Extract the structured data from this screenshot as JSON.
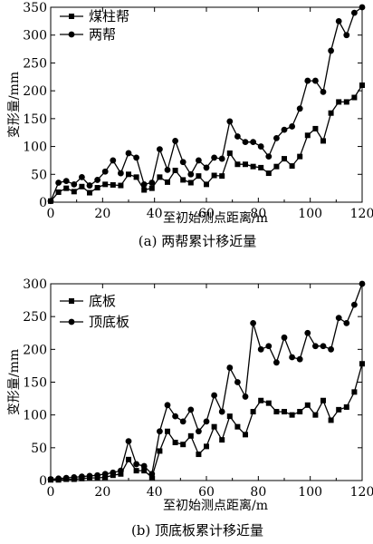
{
  "chart_data": [
    {
      "type": "line",
      "caption": "(a)  两帮累计移近量",
      "xlabel": "至初始测点距离/m",
      "ylabel": "变形量/mm",
      "xlim": [
        0,
        120
      ],
      "ylim": [
        0,
        350
      ],
      "xticks": [
        0,
        20,
        40,
        60,
        80,
        100,
        120
      ],
      "yticks": [
        0,
        50,
        100,
        150,
        200,
        250,
        300,
        350
      ],
      "legend_position": "top-left",
      "series": [
        {
          "name": "煤柱帮",
          "marker": "square",
          "x": [
            0,
            3,
            6,
            9,
            12,
            15,
            18,
            21,
            24,
            27,
            30,
            33,
            36,
            39,
            42,
            45,
            48,
            51,
            54,
            57,
            60,
            63,
            66,
            69,
            72,
            75,
            78,
            81,
            84,
            87,
            90,
            93,
            96,
            99,
            102,
            105,
            108,
            111,
            114,
            117,
            120
          ],
          "y": [
            2,
            18,
            25,
            19,
            28,
            17,
            26,
            32,
            31,
            30,
            50,
            45,
            22,
            25,
            45,
            36,
            57,
            40,
            35,
            47,
            32,
            48,
            47,
            88,
            68,
            68,
            64,
            62,
            52,
            64,
            78,
            65,
            82,
            120,
            132,
            110,
            160,
            180,
            180,
            188,
            210
          ]
        },
        {
          "name": "两帮",
          "marker": "circle",
          "x": [
            0,
            3,
            6,
            9,
            12,
            15,
            18,
            21,
            24,
            27,
            30,
            33,
            36,
            39,
            42,
            45,
            48,
            51,
            54,
            57,
            60,
            63,
            66,
            69,
            72,
            75,
            78,
            81,
            84,
            87,
            90,
            93,
            96,
            99,
            102,
            105,
            108,
            111,
            114,
            117,
            120
          ],
          "y": [
            2,
            35,
            38,
            32,
            45,
            30,
            40,
            55,
            75,
            52,
            88,
            80,
            32,
            35,
            95,
            58,
            110,
            72,
            50,
            75,
            62,
            80,
            78,
            145,
            118,
            108,
            108,
            100,
            82,
            115,
            130,
            136,
            168,
            218,
            218,
            198,
            272,
            325,
            300,
            340,
            350
          ]
        }
      ]
    },
    {
      "type": "line",
      "caption": "(b)  顶底板累计移近量",
      "xlabel": "至初始测点距离/m",
      "ylabel": "变形量/mm",
      "xlim": [
        0,
        120
      ],
      "ylim": [
        0,
        300
      ],
      "xticks": [
        0,
        20,
        40,
        60,
        80,
        100,
        120
      ],
      "yticks": [
        0,
        50,
        100,
        150,
        200,
        250,
        300
      ],
      "legend_position": "top-left",
      "series": [
        {
          "name": "底板",
          "marker": "square",
          "x": [
            0,
            3,
            6,
            9,
            12,
            15,
            18,
            21,
            24,
            27,
            30,
            33,
            36,
            39,
            42,
            45,
            48,
            51,
            54,
            57,
            60,
            63,
            66,
            69,
            72,
            75,
            78,
            81,
            84,
            87,
            90,
            93,
            96,
            99,
            102,
            105,
            108,
            111,
            114,
            117,
            120
          ],
          "y": [
            1,
            1,
            2,
            2,
            3,
            4,
            4,
            5,
            8,
            10,
            32,
            15,
            15,
            5,
            45,
            75,
            58,
            55,
            68,
            40,
            52,
            82,
            62,
            98,
            82,
            70,
            105,
            122,
            118,
            105,
            105,
            100,
            105,
            115,
            100,
            122,
            92,
            108,
            112,
            135,
            178
          ]
        },
        {
          "name": "顶底板",
          "marker": "circle",
          "x": [
            0,
            3,
            6,
            9,
            12,
            15,
            18,
            21,
            24,
            27,
            30,
            33,
            36,
            39,
            42,
            45,
            48,
            51,
            54,
            57,
            60,
            63,
            66,
            69,
            72,
            75,
            78,
            81,
            84,
            87,
            90,
            93,
            96,
            99,
            102,
            105,
            108,
            111,
            114,
            117,
            120
          ],
          "y": [
            2,
            3,
            4,
            5,
            6,
            7,
            8,
            10,
            12,
            15,
            60,
            25,
            22,
            10,
            75,
            115,
            98,
            90,
            108,
            75,
            90,
            130,
            105,
            172,
            150,
            128,
            240,
            200,
            205,
            180,
            218,
            188,
            185,
            225,
            205,
            205,
            200,
            248,
            240,
            268,
            300
          ]
        }
      ]
    }
  ]
}
